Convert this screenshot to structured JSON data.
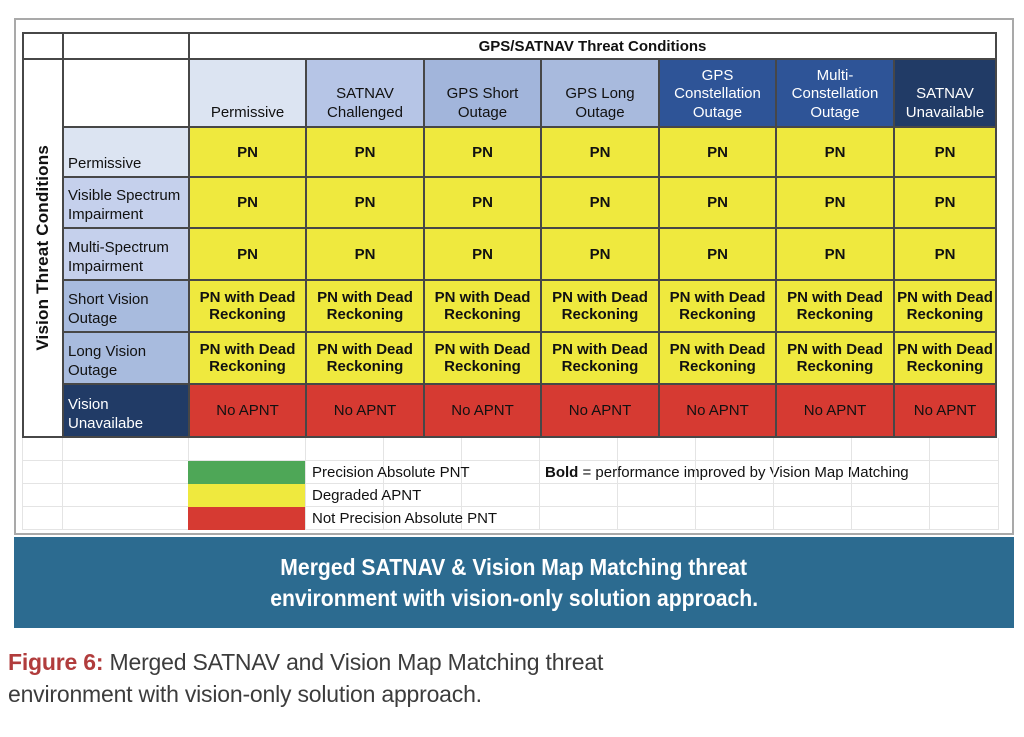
{
  "table": {
    "title": "GPS/SATNAV Threat Conditions",
    "row_axis_label": "Vision Threat Conditions",
    "columns": [
      {
        "label": "Permissive",
        "bg": "#dce4f2",
        "fg": "#111111"
      },
      {
        "label": "SATNAV Challenged",
        "bg": "#b6c5e6",
        "fg": "#111111"
      },
      {
        "label": "GPS Short Outage",
        "bg": "#a2b5db",
        "fg": "#111111"
      },
      {
        "label": "GPS Long Outage",
        "bg": "#a8badd",
        "fg": "#111111"
      },
      {
        "label": "GPS Constellation Outage",
        "bg": "#2e5497",
        "fg": "#ffffff"
      },
      {
        "label": "Multi-Constellation Outage",
        "bg": "#2e5497",
        "fg": "#ffffff"
      },
      {
        "label": "SATNAV Unavailable",
        "bg": "#213b66",
        "fg": "#ffffff"
      }
    ],
    "rows": [
      {
        "label": "Permissive",
        "label_bg": "#dce4f2",
        "label_fg": "#111111",
        "value": "PN",
        "value_bg": "#efe93e",
        "bold": true
      },
      {
        "label": "Visible Spectrum Impairment",
        "label_bg": "#c5d0ec",
        "label_fg": "#111111",
        "value": "PN",
        "value_bg": "#efe93e",
        "bold": true
      },
      {
        "label": "Multi-Spectrum Impairment",
        "label_bg": "#c5d0ec",
        "label_fg": "#111111",
        "value": "PN",
        "value_bg": "#efe93e",
        "bold": true
      },
      {
        "label": "Short Vision Outage",
        "label_bg": "#a8bbde",
        "label_fg": "#111111",
        "value": "PN with Dead Reckoning",
        "value_bg": "#efe93e",
        "bold": true
      },
      {
        "label": "Long Vision Outage",
        "label_bg": "#a8bbde",
        "label_fg": "#111111",
        "value": "PN with Dead Reckoning",
        "value_bg": "#efe93e",
        "bold": true
      },
      {
        "label": "Vision Unavailabe",
        "label_bg": "#213b66",
        "label_fg": "#ffffff",
        "value": "No APNT",
        "value_bg": "#d63a32",
        "bold": false
      }
    ]
  },
  "legend": {
    "items": [
      {
        "color": "#4ea757",
        "label": "Precision Absolute PNT"
      },
      {
        "color": "#efe93e",
        "label": "Degraded APNT"
      },
      {
        "color": "#d63a32",
        "label": "Not Precision Absolute PNT"
      }
    ],
    "note_bold": "Bold",
    "note_rest": " = performance improved by Vision Map Matching"
  },
  "banner": {
    "line1": "Merged SATNAV & Vision Map Matching threat",
    "line2": "environment with vision-only solution approach.",
    "bg": "#2c6b90"
  },
  "caption": {
    "label": "Figure 6:",
    "text": " Merged SATNAV and Vision Map Matching threat environment with vision-only solution approach.",
    "label_color": "#b13c3c"
  }
}
